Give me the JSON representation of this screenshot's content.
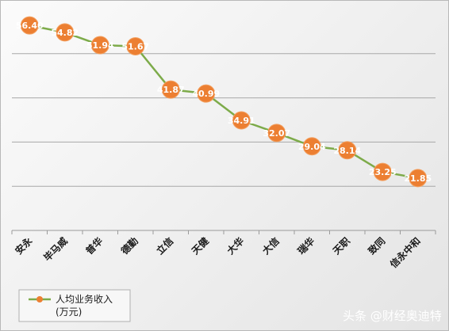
{
  "chart_data": {
    "type": "line",
    "categories": [
      "安永",
      "毕马威",
      "普华",
      "德勤",
      "立信",
      "天健",
      "大华",
      "大信",
      "瑞华",
      "天职",
      "致同",
      "信永中和"
    ],
    "series": [
      {
        "name": "人均业务收入（万元）",
        "values": [
          56.4,
          54.82,
          51.94,
          51.67,
          41.87,
          40.99,
          34.91,
          32.07,
          29.04,
          28.14,
          23.25,
          21.85
        ],
        "labels": [
          "56.40",
          "54.82",
          "51.94",
          "51.67",
          "41.87",
          "40.99",
          "34.91",
          "32.07",
          "29.04",
          "28.14",
          "23.25",
          "21.85"
        ],
        "line_color": "#7dab4a",
        "marker_color": "#ec7f32"
      }
    ],
    "ylim": [
      10,
      60
    ],
    "grid": true,
    "legend_position": "bottom-left",
    "title": "",
    "xlabel": "",
    "ylabel": ""
  },
  "legend": {
    "line1": "人均业务收入",
    "line2": "(万元)"
  },
  "watermark": {
    "text": "头条 @财经奥迪特"
  }
}
